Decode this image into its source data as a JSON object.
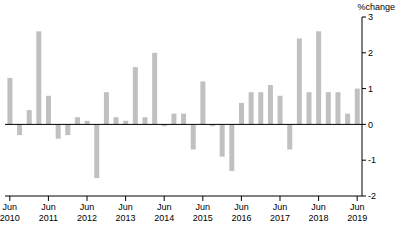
{
  "chart_data": {
    "type": "bar",
    "y_label": "%change",
    "categories": [
      "Jun 2010",
      null,
      null,
      null,
      "Jun 2011",
      null,
      null,
      null,
      "Jun 2012",
      null,
      null,
      null,
      "Jun 2013",
      null,
      null,
      null,
      "Jun 2014",
      null,
      null,
      null,
      "Jun 2015",
      null,
      null,
      null,
      "Jun 2016",
      null,
      null,
      null,
      "Jun 2017",
      null,
      null,
      null,
      "Jun 2018",
      null,
      null,
      null,
      "Jun 2019"
    ],
    "values": [
      1.3,
      -0.3,
      0.4,
      2.6,
      0.8,
      -0.4,
      -0.3,
      0.2,
      0.1,
      -1.5,
      0.9,
      0.2,
      0.1,
      1.6,
      0.2,
      2.0,
      -0.05,
      0.3,
      0.3,
      -0.7,
      1.2,
      -0.05,
      -0.9,
      -1.3,
      0.6,
      0.9,
      0.9,
      1.1,
      0.8,
      -0.7,
      2.4,
      0.9,
      2.6,
      0.9,
      0.9,
      0.3,
      1.0
    ],
    "color": "#c0c0c0",
    "ylim": [
      -2,
      3
    ],
    "yticks": [
      -2,
      -1,
      0,
      1,
      2,
      3
    ],
    "grid": false
  }
}
